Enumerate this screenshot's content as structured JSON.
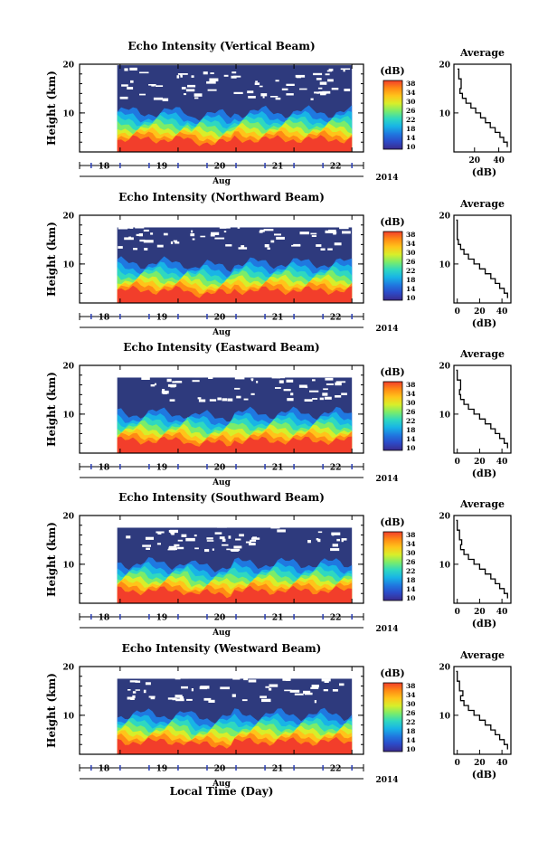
{
  "figure": {
    "xlabel": "Local Time (Day)",
    "month_label": "Aug",
    "year_label": "2014",
    "x_ticks": [
      "18",
      "19",
      "20",
      "21",
      "22"
    ],
    "colorbar_unit": "(dB)",
    "colorbar_ticks": [
      "38",
      "34",
      "30",
      "26",
      "22",
      "18",
      "14",
      "10"
    ],
    "colors": {
      "background_low": "#2e3a7d",
      "saturated_high": "#f23e2b",
      "colormap": [
        "#3b2a8c",
        "#2c4bc8",
        "#1f78e0",
        "#18b4e6",
        "#2fd8c0",
        "#7bec6a",
        "#d8ee2a",
        "#ffc41a",
        "#ff8a14",
        "#f23e2b"
      ]
    }
  },
  "panels": [
    {
      "title": "Echo Intensity (Vertical Beam)",
      "ylabel": "Height (km)",
      "y_ticks": [
        "20",
        "10"
      ],
      "avg_title": "Average",
      "avg_xlabel": "(dB)",
      "avg_x_ticks": [
        "20",
        "40"
      ],
      "avg_y_ticks": [
        "20",
        "10"
      ]
    },
    {
      "title": "Echo Intensity (Northward Beam)",
      "ylabel": "Height (km)",
      "y_ticks": [
        "20",
        "10"
      ],
      "avg_title": "Average",
      "avg_xlabel": "(dB)",
      "avg_x_ticks": [
        "0",
        "20",
        "40"
      ],
      "avg_y_ticks": [
        "20",
        "10"
      ]
    },
    {
      "title": "Echo Intensity (Eastward Beam)",
      "ylabel": "Height (km)",
      "y_ticks": [
        "20",
        "10"
      ],
      "avg_title": "Average",
      "avg_xlabel": "(dB)",
      "avg_x_ticks": [
        "0",
        "20",
        "40"
      ],
      "avg_y_ticks": [
        "20",
        "10"
      ]
    },
    {
      "title": "Echo Intensity (Southward Beam)",
      "ylabel": "Height (km)",
      "y_ticks": [
        "20",
        "10"
      ],
      "avg_title": "Average",
      "avg_xlabel": "(dB)",
      "avg_x_ticks": [
        "0",
        "20",
        "40"
      ],
      "avg_y_ticks": [
        "20",
        "10"
      ]
    },
    {
      "title": "Echo Intensity (Westward Beam)",
      "ylabel": "Height (km)",
      "y_ticks": [
        "20",
        "10"
      ],
      "avg_title": "Average",
      "avg_xlabel": "(dB)",
      "avg_x_ticks": [
        "0",
        "20",
        "40"
      ],
      "avg_y_ticks": [
        "20",
        "10"
      ]
    }
  ],
  "chart_data": [
    {
      "type": "heatmap",
      "title": "Echo Intensity (Vertical Beam)",
      "xlabel": "Local Time (Day)",
      "ylabel": "Height (km)",
      "x_ticks": [
        "18",
        "19",
        "20",
        "21",
        "22"
      ],
      "xlim": [
        17.3,
        22.2
      ],
      "ylim": [
        2,
        20
      ],
      "colorbar": {
        "label": "(dB)",
        "range": [
          10,
          38
        ],
        "ticks": [
          10,
          14,
          18,
          22,
          26,
          30,
          34,
          38
        ]
      },
      "data_start_day": 17.95,
      "data_end_day": 22.0
    },
    {
      "type": "line",
      "title": "Average",
      "xlabel": "(dB)",
      "ylabel": "",
      "xlim": [
        3,
        50
      ],
      "ylim": [
        2,
        20
      ],
      "x": [
        47,
        44,
        41,
        37,
        33,
        29,
        25,
        21,
        17,
        13,
        10,
        8,
        9,
        7,
        6
      ],
      "y": [
        3,
        4,
        5,
        6,
        7,
        8,
        9,
        10,
        11,
        12,
        13,
        14,
        15,
        17,
        19
      ]
    },
    {
      "type": "heatmap",
      "title": "Echo Intensity (Northward Beam)",
      "xlabel": "Local Time (Day)",
      "ylabel": "Height (km)",
      "x_ticks": [
        "18",
        "19",
        "20",
        "21",
        "22"
      ],
      "xlim": [
        17.3,
        22.2
      ],
      "ylim": [
        2,
        20
      ],
      "colorbar": {
        "label": "(dB)",
        "range": [
          10,
          38
        ],
        "ticks": [
          10,
          14,
          18,
          22,
          26,
          30,
          34,
          38
        ]
      },
      "data_start_day": 17.95,
      "data_end_day": 22.0
    },
    {
      "type": "line",
      "title": "Average",
      "xlabel": "(dB)",
      "ylabel": "",
      "xlim": [
        -3,
        48
      ],
      "ylim": [
        2,
        20
      ],
      "x": [
        45,
        42,
        38,
        34,
        30,
        25,
        20,
        15,
        10,
        6,
        3,
        1,
        0,
        0,
        -1
      ],
      "y": [
        3,
        4,
        5,
        6,
        7,
        8,
        9,
        10,
        11,
        12,
        13,
        14,
        15,
        17,
        19
      ]
    },
    {
      "type": "heatmap",
      "title": "Echo Intensity (Eastward Beam)",
      "xlabel": "Local Time (Day)",
      "ylabel": "Height (km)",
      "x_ticks": [
        "18",
        "19",
        "20",
        "21",
        "22"
      ],
      "xlim": [
        17.3,
        22.2
      ],
      "ylim": [
        2,
        20
      ],
      "colorbar": {
        "label": "(dB)",
        "range": [
          10,
          38
        ],
        "ticks": [
          10,
          14,
          18,
          22,
          26,
          30,
          34,
          38
        ]
      },
      "data_start_day": 17.95,
      "data_end_day": 22.0
    },
    {
      "type": "line",
      "title": "Average",
      "xlabel": "(dB)",
      "ylabel": "",
      "xlim": [
        -3,
        48
      ],
      "ylim": [
        2,
        20
      ],
      "x": [
        45,
        42,
        38,
        34,
        30,
        25,
        20,
        15,
        10,
        6,
        3,
        2,
        3,
        0,
        -1
      ],
      "y": [
        3,
        4,
        5,
        6,
        7,
        8,
        9,
        10,
        11,
        12,
        13,
        14,
        15,
        17,
        19
      ]
    },
    {
      "type": "heatmap",
      "title": "Echo Intensity (Southward Beam)",
      "xlabel": "Local Time (Day)",
      "ylabel": "Height (km)",
      "x_ticks": [
        "18",
        "19",
        "20",
        "21",
        "22"
      ],
      "xlim": [
        17.3,
        22.2
      ],
      "ylim": [
        2,
        20
      ],
      "colorbar": {
        "label": "(dB)",
        "range": [
          10,
          38
        ],
        "ticks": [
          10,
          14,
          18,
          22,
          26,
          30,
          34,
          38
        ]
      },
      "data_start_day": 17.95,
      "data_end_day": 22.0
    },
    {
      "type": "line",
      "title": "Average",
      "xlabel": "(dB)",
      "ylabel": "",
      "xlim": [
        -3,
        48
      ],
      "ylim": [
        2,
        20
      ],
      "x": [
        45,
        42,
        38,
        34,
        30,
        25,
        20,
        15,
        10,
        6,
        3,
        4,
        2,
        0,
        -1
      ],
      "y": [
        3,
        4,
        5,
        6,
        7,
        8,
        9,
        10,
        11,
        12,
        13,
        14,
        15,
        17,
        19
      ]
    },
    {
      "type": "heatmap",
      "title": "Echo Intensity (Westward Beam)",
      "xlabel": "Local Time (Day)",
      "ylabel": "Height (km)",
      "x_ticks": [
        "18",
        "19",
        "20",
        "21",
        "22"
      ],
      "xlim": [
        17.3,
        22.2
      ],
      "ylim": [
        2,
        20
      ],
      "colorbar": {
        "label": "(dB)",
        "range": [
          10,
          38
        ],
        "ticks": [
          10,
          14,
          18,
          22,
          26,
          30,
          34,
          38
        ]
      },
      "data_start_day": 17.95,
      "data_end_day": 22.0
    },
    {
      "type": "line",
      "title": "Average",
      "xlabel": "(dB)",
      "ylabel": "",
      "xlim": [
        -3,
        48
      ],
      "ylim": [
        2,
        20
      ],
      "x": [
        45,
        42,
        38,
        34,
        30,
        25,
        20,
        15,
        10,
        6,
        3,
        5,
        2,
        0,
        -1
      ],
      "y": [
        3,
        4,
        5,
        6,
        7,
        8,
        9,
        10,
        11,
        12,
        13,
        14,
        15,
        17,
        19
      ]
    }
  ]
}
